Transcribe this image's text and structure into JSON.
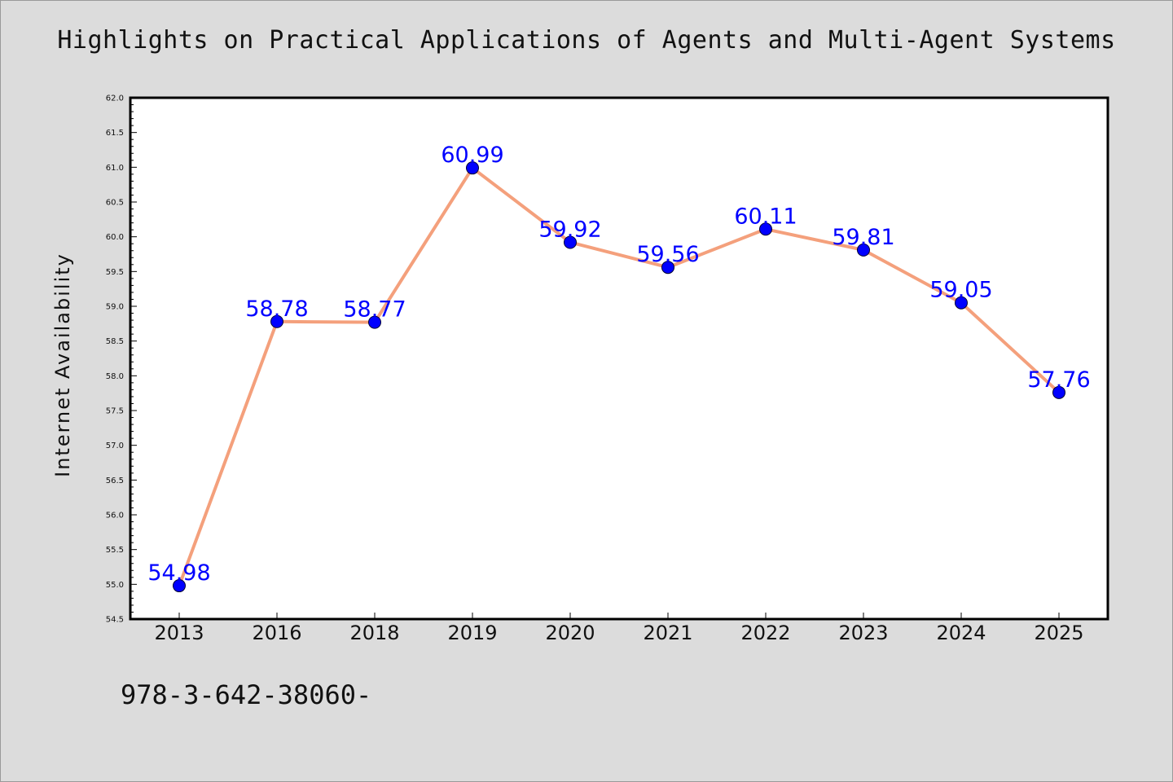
{
  "page": {
    "title": "Highlights on Practical Applications of Agents and Multi-Agent Systems",
    "footer": "978-3-642-38060-"
  },
  "colors": {
    "background": "#dcdcdc",
    "plot_background": "#ffffff",
    "line": "#f4a07c",
    "marker": "#0000ff",
    "data_label": "#0000ff",
    "axis": "#000000"
  },
  "chart_data": {
    "type": "line",
    "title": "Highlights on Practical Applications of Agents and Multi-Agent Systems",
    "xlabel": "",
    "ylabel": "Internet Availability",
    "categories": [
      "2013",
      "2016",
      "2018",
      "2019",
      "2020",
      "2021",
      "2022",
      "2023",
      "2024",
      "2025"
    ],
    "series": [
      {
        "values": [
          54.98,
          58.78,
          58.77,
          60.99,
          59.92,
          59.56,
          60.11,
          59.81,
          59.05,
          57.76
        ]
      }
    ],
    "ylim": [
      54.5,
      62.0
    ],
    "yticks": [
      "54.5",
      "55.0",
      "55.5",
      "56.0",
      "56.5",
      "57.0",
      "57.5",
      "58.0",
      "58.5",
      "59.0",
      "59.5",
      "60.0",
      "60.5",
      "61.0",
      "61.5",
      "62.0"
    ],
    "data_labels": [
      "54.98",
      "58.78",
      "58.77",
      "60.99",
      "59.92",
      "59.56",
      "60.11",
      "59.81",
      "59.05",
      "57.76"
    ],
    "grid": false,
    "legend": "none",
    "marker": "circle"
  }
}
